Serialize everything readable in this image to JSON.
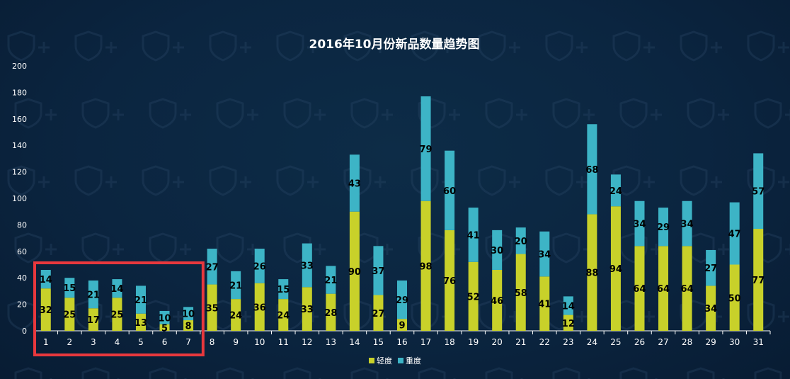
{
  "chart_data": {
    "type": "bar",
    "stacked": true,
    "title": "2016年10月份新品数量趋势图",
    "categories": [
      "1",
      "2",
      "3",
      "4",
      "5",
      "6",
      "7",
      "8",
      "9",
      "10",
      "11",
      "12",
      "13",
      "14",
      "15",
      "16",
      "17",
      "18",
      "19",
      "20",
      "21",
      "22",
      "23",
      "24",
      "25",
      "26",
      "27",
      "28",
      "29",
      "30",
      "31"
    ],
    "series": [
      {
        "name": "轻度",
        "color": "#c8d12a",
        "values": [
          32,
          25,
          17,
          25,
          13,
          5,
          8,
          35,
          24,
          36,
          24,
          33,
          28,
          90,
          27,
          9,
          98,
          76,
          52,
          46,
          58,
          41,
          12,
          88,
          94,
          64,
          64,
          64,
          34,
          50,
          77
        ]
      },
      {
        "name": "重度",
        "color": "#3db4c6",
        "values": [
          14,
          15,
          21,
          14,
          21,
          10,
          10,
          27,
          21,
          26,
          15,
          33,
          21,
          43,
          37,
          29,
          79,
          60,
          41,
          30,
          20,
          34,
          14,
          68,
          24,
          34,
          29,
          34,
          27,
          47,
          57
        ]
      }
    ],
    "ylim": [
      0,
      200
    ],
    "yticks": [
      0,
      20,
      40,
      60,
      80,
      100,
      120,
      140,
      160,
      180,
      200
    ],
    "grid": false,
    "legend": "bottom-center",
    "highlight_box": {
      "from": "1",
      "to": "7",
      "color": "#e8383d"
    }
  }
}
